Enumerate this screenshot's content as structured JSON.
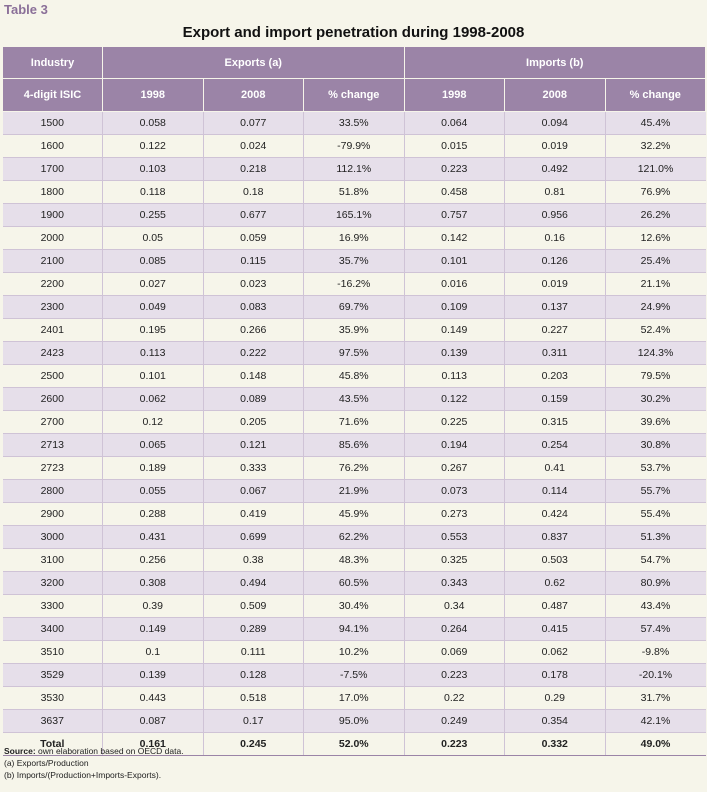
{
  "table_label": "Table 3",
  "title": "Export and import penetration during 1998-2008",
  "header": {
    "industry": "Industry",
    "exports": "Exports (a)",
    "imports": "Imports (b)",
    "isic": "4-digit ISIC",
    "y1998": "1998",
    "y2008": "2008",
    "pct": "% change"
  },
  "rows": [
    [
      "1500",
      "0.058",
      "0.077",
      "33.5%",
      "0.064",
      "0.094",
      "45.4%"
    ],
    [
      "1600",
      "0.122",
      "0.024",
      "-79.9%",
      "0.015",
      "0.019",
      "32.2%"
    ],
    [
      "1700",
      "0.103",
      "0.218",
      "112.1%",
      "0.223",
      "0.492",
      "121.0%"
    ],
    [
      "1800",
      "0.118",
      "0.18",
      "51.8%",
      "0.458",
      "0.81",
      "76.9%"
    ],
    [
      "1900",
      "0.255",
      "0.677",
      "165.1%",
      "0.757",
      "0.956",
      "26.2%"
    ],
    [
      "2000",
      "0.05",
      "0.059",
      "16.9%",
      "0.142",
      "0.16",
      "12.6%"
    ],
    [
      "2100",
      "0.085",
      "0.115",
      "35.7%",
      "0.101",
      "0.126",
      "25.4%"
    ],
    [
      "2200",
      "0.027",
      "0.023",
      "-16.2%",
      "0.016",
      "0.019",
      "21.1%"
    ],
    [
      "2300",
      "0.049",
      "0.083",
      "69.7%",
      "0.109",
      "0.137",
      "24.9%"
    ],
    [
      "2401",
      "0.195",
      "0.266",
      "35.9%",
      "0.149",
      "0.227",
      "52.4%"
    ],
    [
      "2423",
      "0.113",
      "0.222",
      "97.5%",
      "0.139",
      "0.311",
      "124.3%"
    ],
    [
      "2500",
      "0.101",
      "0.148",
      "45.8%",
      "0.113",
      "0.203",
      "79.5%"
    ],
    [
      "2600",
      "0.062",
      "0.089",
      "43.5%",
      "0.122",
      "0.159",
      "30.2%"
    ],
    [
      "2700",
      "0.12",
      "0.205",
      "71.6%",
      "0.225",
      "0.315",
      "39.6%"
    ],
    [
      "2713",
      "0.065",
      "0.121",
      "85.6%",
      "0.194",
      "0.254",
      "30.8%"
    ],
    [
      "2723",
      "0.189",
      "0.333",
      "76.2%",
      "0.267",
      "0.41",
      "53.7%"
    ],
    [
      "2800",
      "0.055",
      "0.067",
      "21.9%",
      "0.073",
      "0.114",
      "55.7%"
    ],
    [
      "2900",
      "0.288",
      "0.419",
      "45.9%",
      "0.273",
      "0.424",
      "55.4%"
    ],
    [
      "3000",
      "0.431",
      "0.699",
      "62.2%",
      "0.553",
      "0.837",
      "51.3%"
    ],
    [
      "3100",
      "0.256",
      "0.38",
      "48.3%",
      "0.325",
      "0.503",
      "54.7%"
    ],
    [
      "3200",
      "0.308",
      "0.494",
      "60.5%",
      "0.343",
      "0.62",
      "80.9%"
    ],
    [
      "3300",
      "0.39",
      "0.509",
      "30.4%",
      "0.34",
      "0.487",
      "43.4%"
    ],
    [
      "3400",
      "0.149",
      "0.289",
      "94.1%",
      "0.264",
      "0.415",
      "57.4%"
    ],
    [
      "3510",
      "0.1",
      "0.111",
      "10.2%",
      "0.069",
      "0.062",
      "-9.8%"
    ],
    [
      "3529",
      "0.139",
      "0.128",
      "-7.5%",
      "0.223",
      "0.178",
      "-20.1%"
    ],
    [
      "3530",
      "0.443",
      "0.518",
      "17.0%",
      "0.22",
      "0.29",
      "31.7%"
    ],
    [
      "3637",
      "0.087",
      "0.17",
      "95.0%",
      "0.249",
      "0.354",
      "42.1%"
    ]
  ],
  "total": [
    "Total",
    "0.161",
    "0.245",
    "52.0%",
    "0.223",
    "0.332",
    "49.0%"
  ],
  "notes": {
    "source_label": "Source:",
    "source_text": " own elaboration based on OECD data.",
    "note_a": "(a) Exports/Production",
    "note_b": "(b) Imports/(Production+Imports-Exports)."
  }
}
